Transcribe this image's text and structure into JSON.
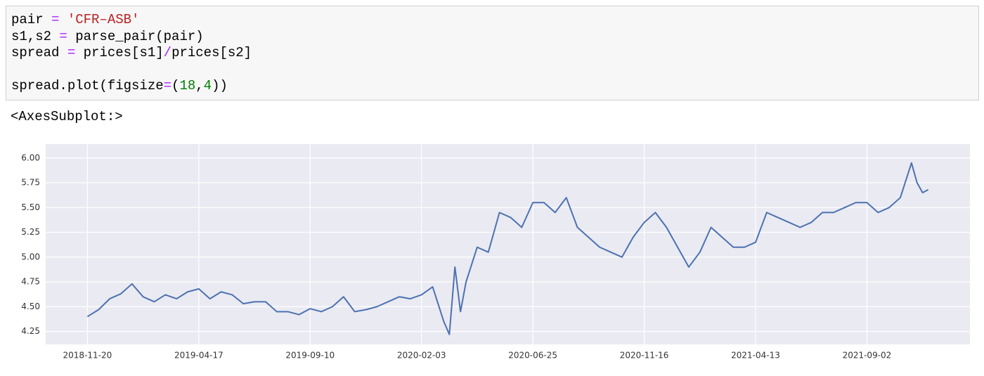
{
  "code": {
    "lines": [
      [
        {
          "text": "pair ",
          "color": "#000000"
        },
        {
          "text": "=",
          "color": "#aa22ff"
        },
        {
          "text": " ",
          "color": "#000000"
        },
        {
          "text": "'CFR–ASB'",
          "color": "#ba2121"
        }
      ],
      [
        {
          "text": "s1,s2 ",
          "color": "#000000"
        },
        {
          "text": "=",
          "color": "#aa22ff"
        },
        {
          "text": " parse_pair(pair)",
          "color": "#000000"
        }
      ],
      [
        {
          "text": "spread ",
          "color": "#000000"
        },
        {
          "text": "=",
          "color": "#aa22ff"
        },
        {
          "text": " prices[s1]",
          "color": "#000000"
        },
        {
          "text": "/",
          "color": "#aa22ff"
        },
        {
          "text": "prices[s2]",
          "color": "#000000"
        }
      ],
      [],
      [
        {
          "text": "spread.plot(figsize",
          "color": "#000000"
        },
        {
          "text": "=",
          "color": "#aa22ff"
        },
        {
          "text": "(",
          "color": "#000000"
        },
        {
          "text": "18",
          "color": "#008000"
        },
        {
          "text": ",",
          "color": "#000000"
        },
        {
          "text": "4",
          "color": "#008000"
        },
        {
          "text": "))",
          "color": "#000000"
        }
      ]
    ]
  },
  "output": "<AxesSubplot:>",
  "chart_data": {
    "type": "line",
    "grid": true,
    "xlim": [
      -37.5,
      792.5
    ],
    "xticks": [
      {
        "value": 0,
        "label": "2018-11-20"
      },
      {
        "value": 100,
        "label": "2019-04-17"
      },
      {
        "value": 200,
        "label": "2019-09-10"
      },
      {
        "value": 300,
        "label": "2020-02-03"
      },
      {
        "value": 400,
        "label": "2020-06-25"
      },
      {
        "value": 500,
        "label": "2020-11-16"
      },
      {
        "value": 600,
        "label": "2021-04-13"
      },
      {
        "value": 700,
        "label": "2021-09-02"
      }
    ],
    "ylim": [
      4.12,
      6.14
    ],
    "yticks": [
      {
        "value": 4.25,
        "label": "4.25"
      },
      {
        "value": 4.5,
        "label": "4.50"
      },
      {
        "value": 4.75,
        "label": "4.75"
      },
      {
        "value": 5.0,
        "label": "5.00"
      },
      {
        "value": 5.25,
        "label": "5.25"
      },
      {
        "value": 5.5,
        "label": "5.50"
      },
      {
        "value": 5.75,
        "label": "5.75"
      },
      {
        "value": 6.0,
        "label": "6.00"
      }
    ],
    "series": [
      {
        "color": "#4c72b0",
        "x": [
          0,
          10,
          20,
          30,
          40,
          50,
          60,
          70,
          80,
          90,
          100,
          110,
          120,
          130,
          140,
          150,
          160,
          170,
          180,
          190,
          200,
          210,
          220,
          230,
          240,
          250,
          260,
          270,
          280,
          290,
          300,
          310,
          320,
          325,
          330,
          335,
          340,
          350,
          360,
          370,
          380,
          390,
          400,
          410,
          420,
          430,
          440,
          450,
          460,
          470,
          480,
          490,
          500,
          510,
          520,
          530,
          540,
          550,
          560,
          570,
          580,
          590,
          600,
          610,
          620,
          630,
          640,
          650,
          660,
          670,
          680,
          690,
          700,
          710,
          720,
          730,
          740,
          745,
          750,
          755
        ],
        "values": [
          4.4,
          4.47,
          4.58,
          4.63,
          4.73,
          4.6,
          4.55,
          4.62,
          4.58,
          4.65,
          4.68,
          4.58,
          4.65,
          4.62,
          4.53,
          4.55,
          4.55,
          4.45,
          4.45,
          4.42,
          4.48,
          4.45,
          4.5,
          4.6,
          4.45,
          4.47,
          4.5,
          4.55,
          4.6,
          4.58,
          4.62,
          4.7,
          4.35,
          4.22,
          4.9,
          4.45,
          4.75,
          5.1,
          5.05,
          5.45,
          5.4,
          5.3,
          5.55,
          5.55,
          5.45,
          5.6,
          5.3,
          5.2,
          5.1,
          5.05,
          5.0,
          5.2,
          5.35,
          5.45,
          5.3,
          5.1,
          4.9,
          5.05,
          5.3,
          5.2,
          5.1,
          5.1,
          5.15,
          5.45,
          5.4,
          5.35,
          5.3,
          5.35,
          5.45,
          5.45,
          5.5,
          5.55,
          5.55,
          5.45,
          5.5,
          5.6,
          5.95,
          5.75,
          5.65,
          5.68
        ]
      }
    ]
  }
}
